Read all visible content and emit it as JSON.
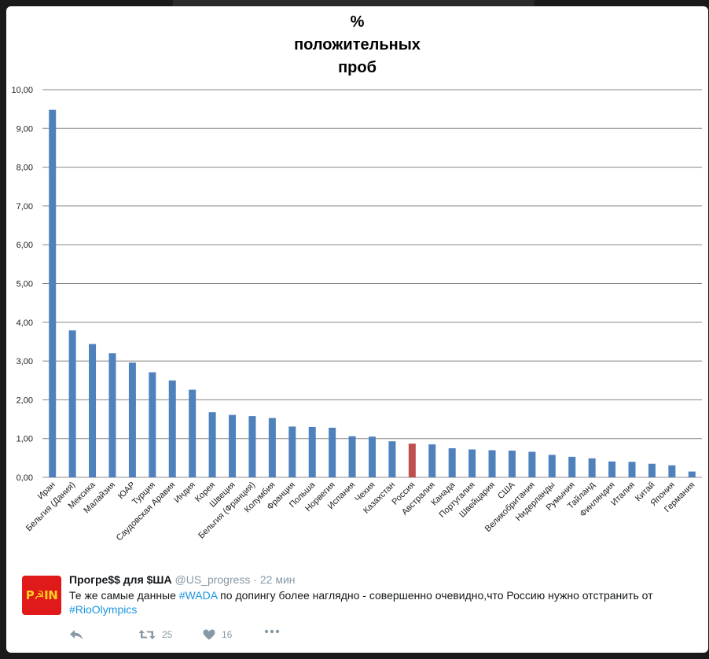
{
  "chart_data": {
    "type": "bar",
    "title_lines": [
      "%",
      "положительных",
      "проб"
    ],
    "categories": [
      "Иран",
      "Бельгия (Дания)",
      "Мексика",
      "Малайзия",
      "ЮАР",
      "Турция",
      "Саудовская Аравия",
      "Индия",
      "Корея",
      "Швеция",
      "Бельгия (Франция)",
      "Колумбия",
      "Франция",
      "Польша",
      "Норвегия",
      "Испания",
      "Чехия",
      "Казахстан",
      "Россия",
      "Австралия",
      "Канада",
      "Португалия",
      "Швейцария",
      "США",
      "Великобритания",
      "Нидерланды",
      "Румыния",
      "Тайланд",
      "Финляндия",
      "Италия",
      "Китай",
      "Япония",
      "Германия"
    ],
    "values": [
      9.48,
      3.79,
      3.44,
      3.2,
      2.96,
      2.71,
      2.5,
      2.26,
      1.68,
      1.61,
      1.58,
      1.53,
      1.31,
      1.3,
      1.28,
      1.06,
      1.05,
      0.93,
      0.87,
      0.85,
      0.75,
      0.72,
      0.7,
      0.69,
      0.66,
      0.58,
      0.53,
      0.49,
      0.41,
      0.4,
      0.35,
      0.31,
      0.15
    ],
    "y_ticks": [
      "0,00",
      "1,00",
      "2,00",
      "3,00",
      "4,00",
      "5,00",
      "6,00",
      "7,00",
      "8,00",
      "9,00",
      "10,00"
    ],
    "ylim": [
      0,
      10
    ],
    "grid": true,
    "bar_color": "#4f81bd",
    "highlight_category": "Россия",
    "highlight_color": "#c0504d",
    "xlabel": "",
    "ylabel": ""
  },
  "tweet": {
    "avatar_text": "P☭IN",
    "name": "Прогре$$ для $ША",
    "handle": "@US_progress",
    "time": " · 22 мин",
    "text_before": "Те же самые данные ",
    "hashtag1": "#WADA",
    "text_middle": " по допингу более наглядно - совершенно очевидно,что Россию нужно отстранить от ",
    "hashtag2": "#RioOlympics",
    "retweets": "25",
    "likes": "16",
    "icons": [
      "reply-icon",
      "retweet-icon",
      "heart-icon",
      "more-icon"
    ],
    "link_color": "#1b95e0"
  }
}
